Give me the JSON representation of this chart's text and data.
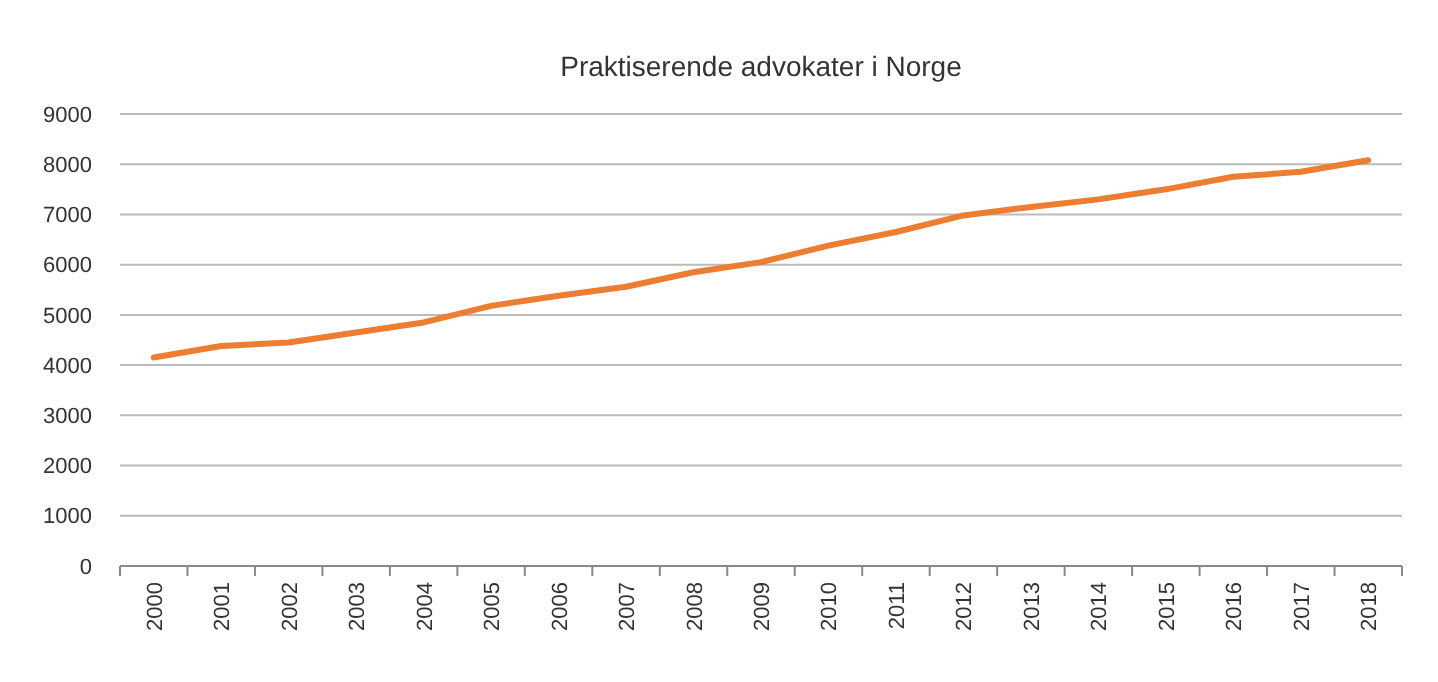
{
  "chart_data": {
    "type": "line",
    "title": "Praktiserende advokater i Norge",
    "categories": [
      "2000",
      "2001",
      "2002",
      "2003",
      "2004",
      "2005",
      "2006",
      "2007",
      "2008",
      "2009",
      "2010",
      "2011",
      "2012",
      "2013",
      "2014",
      "2015",
      "2016",
      "2017",
      "2018"
    ],
    "series": [
      {
        "color": "#ed7d31",
        "values": [
          4150,
          4380,
          4450,
          4650,
          4850,
          5180,
          5380,
          5560,
          5850,
          6050,
          6380,
          6650,
          6980,
          7150,
          7300,
          7500,
          7750,
          7850,
          8080
        ]
      }
    ],
    "ylim": [
      0,
      9000
    ],
    "yticks": [
      0,
      1000,
      2000,
      3000,
      4000,
      5000,
      6000,
      7000,
      8000,
      9000
    ],
    "grid": "y",
    "marker": "none",
    "line_style": "solid"
  }
}
